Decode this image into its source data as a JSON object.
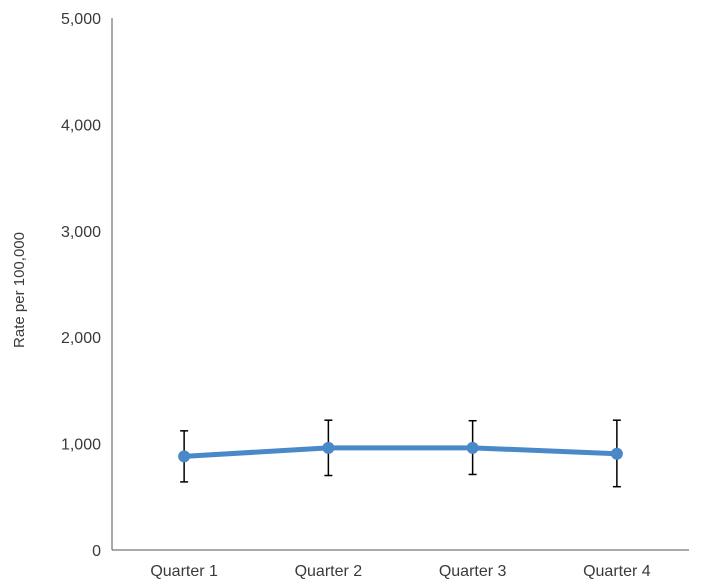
{
  "chart_data": {
    "type": "line",
    "title": "",
    "xlabel": "",
    "ylabel": "Rate per 100,000",
    "categories": [
      "Quarter 1",
      "Quarter 2",
      "Quarter 3",
      "Quarter 4"
    ],
    "series": [
      {
        "values": [
          880,
          960,
          960,
          905
        ],
        "error_low": [
          640,
          700,
          710,
          595
        ],
        "error_high": [
          1120,
          1220,
          1215,
          1220
        ],
        "color": "#4a89c8"
      }
    ],
    "ylim": [
      0,
      5000
    ],
    "y_ticks": [
      0,
      1000,
      2000,
      3000,
      4000,
      5000
    ],
    "y_tick_labels": [
      "0",
      "1,000",
      "2,000",
      "3,000",
      "4,000",
      "5,000"
    ],
    "grid": false,
    "legend": "none",
    "error_bar_color": "#000000"
  }
}
